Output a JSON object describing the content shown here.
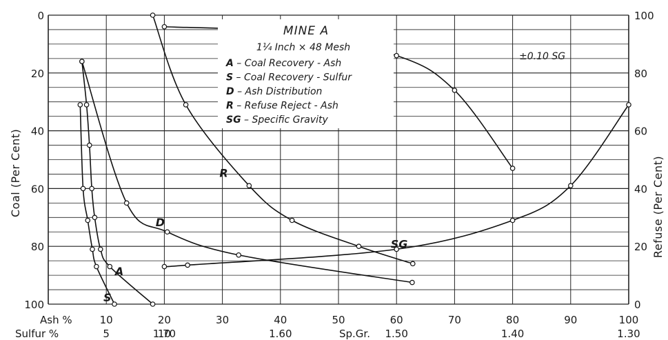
{
  "chart_data": {
    "type": "line",
    "title": "MINE A",
    "subtitle": "1¼ Inch × 48 Mesh",
    "legend": [
      {
        "key": "A",
        "text": "Coal Recovery - Ash"
      },
      {
        "key": "S",
        "text": "Coal Recovery - Sulfur"
      },
      {
        "key": "D",
        "text": "Ash Distribution"
      },
      {
        "key": "R",
        "text": "Refuse Reject - Ash"
      },
      {
        "key": "SG",
        "text": "Specific Gravity"
      }
    ],
    "legend_placement": "top-center",
    "grid": true,
    "left_axis": {
      "label_main": "Coal",
      "label_paren": "Per Cent",
      "range": [
        0,
        100
      ],
      "inverted": true,
      "ticks": [
        0,
        20,
        40,
        60,
        80,
        100
      ]
    },
    "right_axis": {
      "label_main": "Refuse",
      "label_paren": "Per Cent",
      "range": [
        0,
        100
      ],
      "ticks": [
        0,
        20,
        40,
        60,
        80,
        100
      ]
    },
    "bottom_axis": {
      "row_labels": [
        "Ash %",
        "Sulfur %"
      ],
      "ash_ticks": [
        "10",
        "20",
        "30",
        "40",
        "50",
        "60",
        "70",
        "80",
        "90",
        "100"
      ],
      "sulfur_ticks": [
        "5",
        "10"
      ],
      "sg_label": "Sp.Gr.",
      "sg_ticks": [
        "1.70",
        "1.60",
        "1.50",
        "1.40",
        "1.30"
      ]
    },
    "annotation": "±0.10 SG",
    "series": [
      {
        "name": "A",
        "x_unit": "Ash %",
        "points": [
          [
            5.8,
            16
          ],
          [
            6.6,
            31
          ],
          [
            7.1,
            45
          ],
          [
            7.5,
            60
          ],
          [
            8.0,
            70
          ],
          [
            9.0,
            81
          ],
          [
            10.6,
            87
          ],
          [
            18.0,
            100
          ]
        ]
      },
      {
        "name": "S",
        "x_unit": "Ash %",
        "points": [
          [
            5.5,
            31
          ],
          [
            6.0,
            60
          ],
          [
            6.8,
            71
          ],
          [
            7.6,
            81
          ],
          [
            8.3,
            87
          ],
          [
            11.4,
            100
          ]
        ]
      },
      {
        "name": "D",
        "x_unit": "Ash %",
        "points": [
          [
            5.8,
            16
          ],
          [
            13.5,
            65
          ],
          [
            20.5,
            75
          ],
          [
            32.8,
            83
          ],
          [
            62.7,
            92.5
          ]
        ]
      },
      {
        "name": "R",
        "x_unit": "Ash %",
        "points": [
          [
            18.0,
            0
          ],
          [
            23.7,
            31
          ],
          [
            34.6,
            59
          ],
          [
            42.0,
            71
          ],
          [
            53.5,
            80
          ],
          [
            62.8,
            86
          ]
        ]
      },
      {
        "name": "SG",
        "x_unit": "Sp.Gr.",
        "axis": "right",
        "points": [
          [
            1.7,
            13
          ],
          [
            1.68,
            13.5
          ],
          [
            1.5,
            19
          ],
          [
            1.4,
            29
          ],
          [
            1.35,
            41
          ],
          [
            1.3,
            69
          ]
        ]
      },
      {
        "name": "±0.10 SG",
        "x_unit": "Sp.Gr.",
        "axis": "right",
        "points": [
          [
            1.7,
            96
          ],
          [
            1.6,
            94
          ],
          [
            1.5,
            86
          ],
          [
            1.45,
            74
          ],
          [
            1.4,
            47
          ]
        ]
      }
    ]
  }
}
